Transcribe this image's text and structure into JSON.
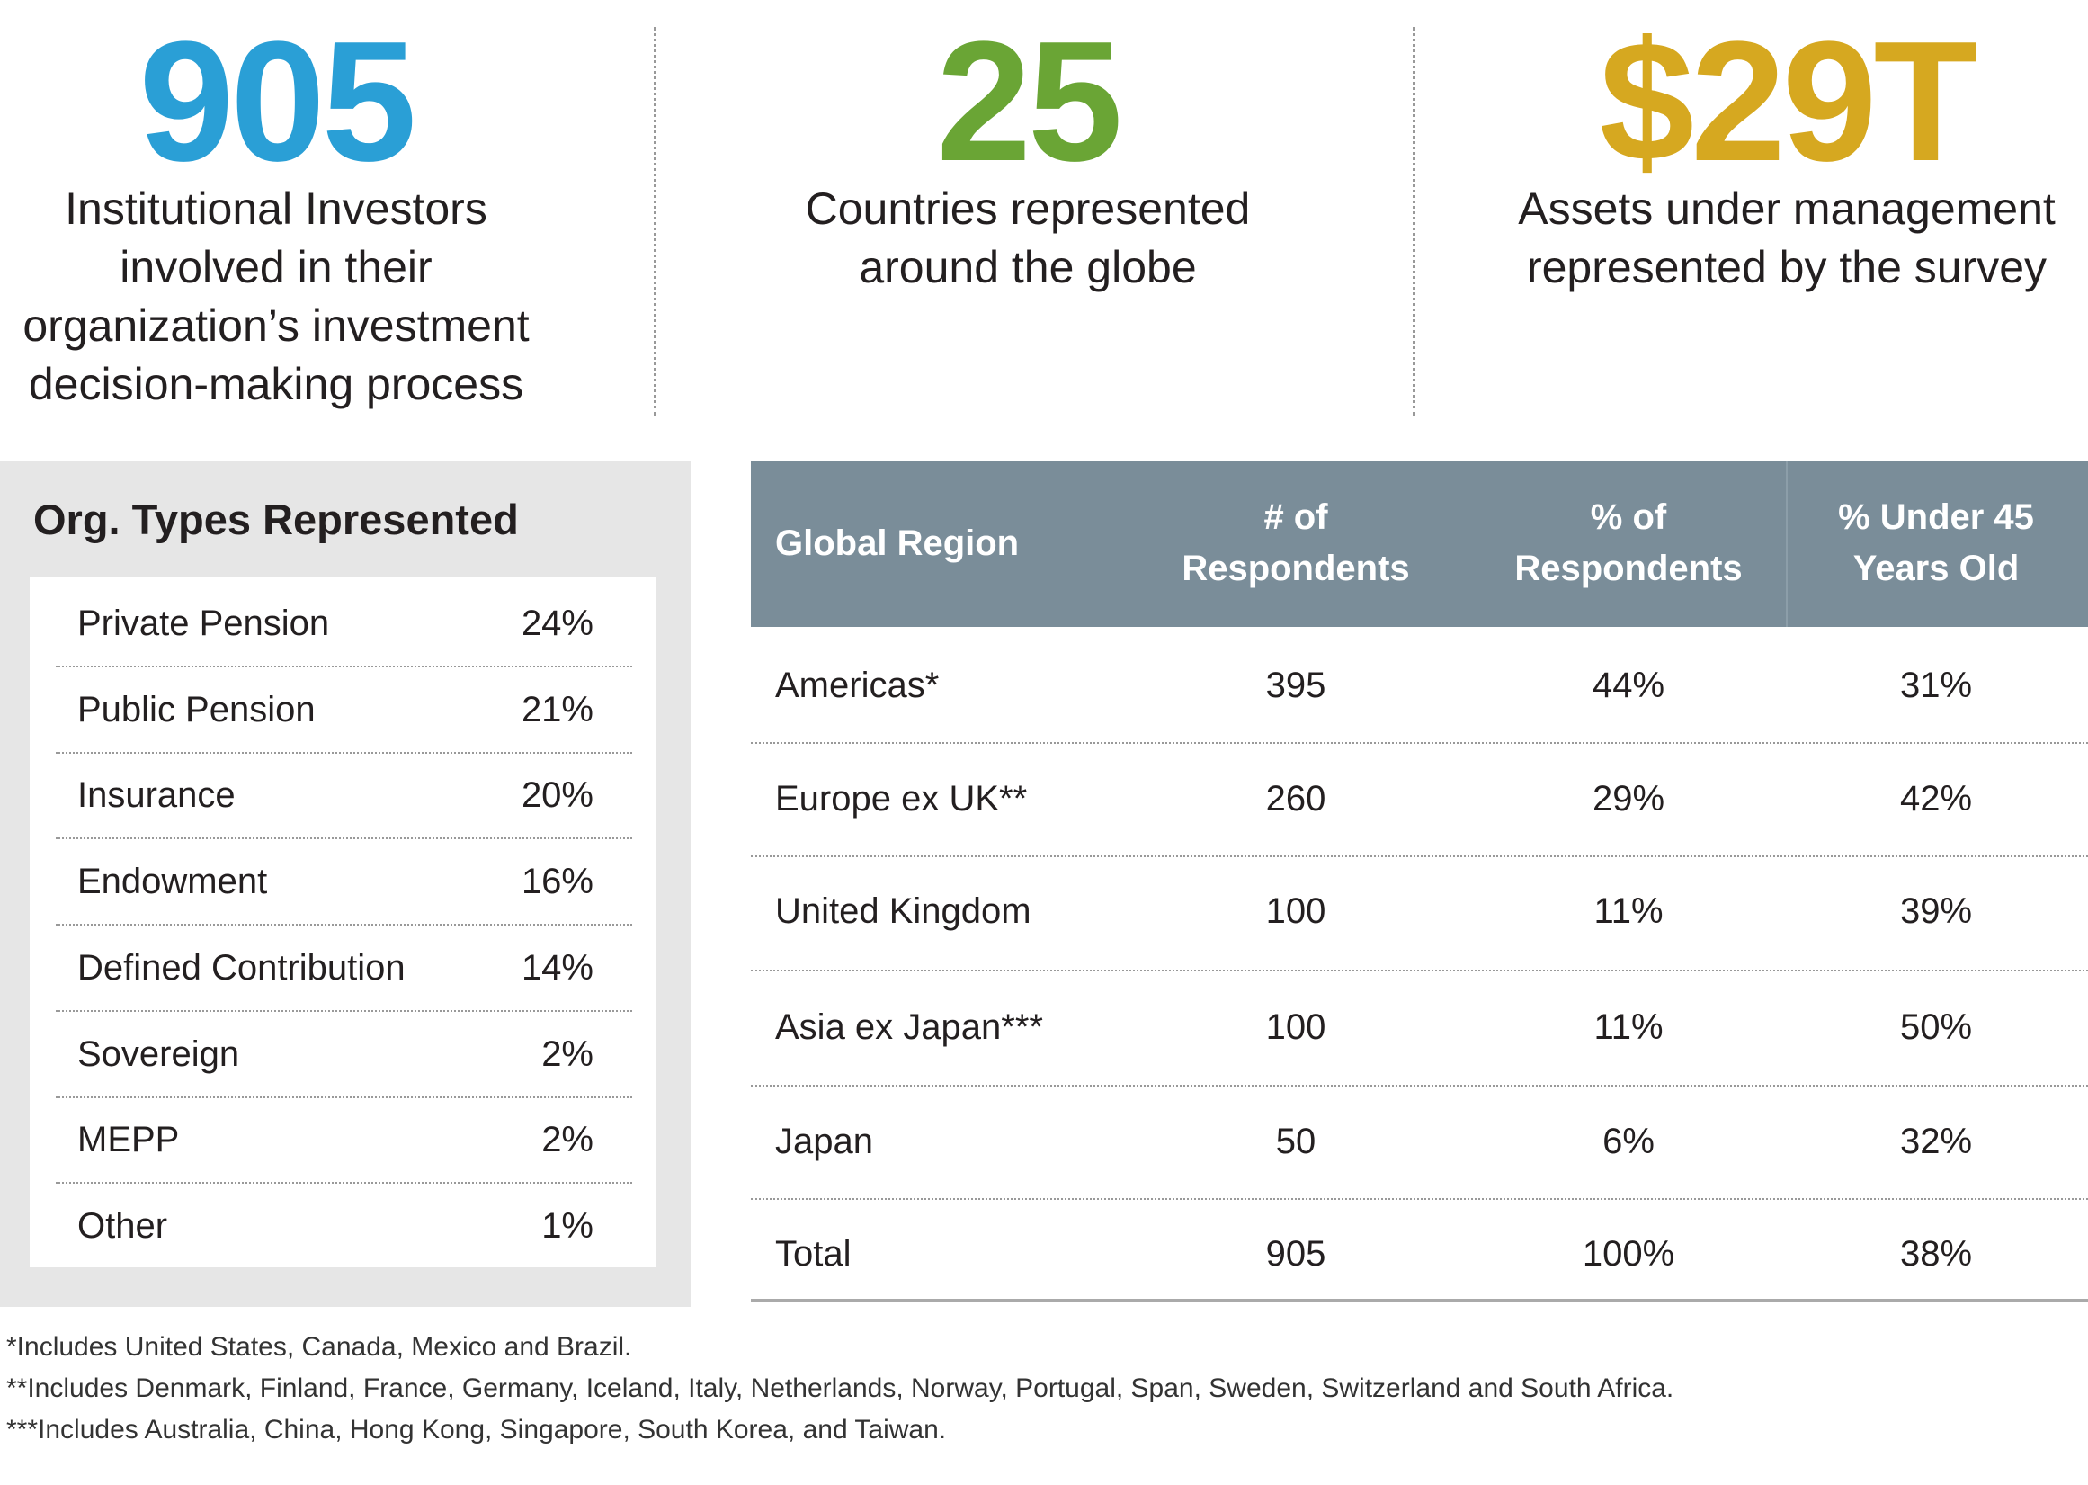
{
  "stats": [
    {
      "value": "905",
      "lines": [
        "Institutional Investors",
        "involved in their",
        "organization’s investment",
        "decision-making process"
      ]
    },
    {
      "value": "25",
      "lines": [
        "Countries represented",
        "around the globe"
      ]
    },
    {
      "value": "$29T",
      "lines": [
        "Assets under management",
        "represented by the survey"
      ]
    }
  ],
  "org_types": {
    "title": "Org. Types Represented",
    "rows": [
      [
        "Private Pension",
        "24%"
      ],
      [
        "Public Pension",
        "21%"
      ],
      [
        "Insurance",
        "20%"
      ],
      [
        "Endowment",
        "16%"
      ],
      [
        "Defined Contribution",
        "14%"
      ],
      [
        "Sovereign",
        "2%"
      ],
      [
        "MEPP",
        "2%"
      ],
      [
        "Other",
        "1%"
      ]
    ]
  },
  "table": {
    "headers": [
      [
        "Global Region"
      ],
      [
        "# of",
        "Respondents"
      ],
      [
        "% of",
        "Respondents"
      ],
      [
        "% Under 45",
        "Years Old"
      ]
    ],
    "rows": [
      [
        "Americas*",
        "395",
        "44%",
        "31%"
      ],
      [
        "Europe ex UK**",
        "260",
        "29%",
        "42%"
      ],
      [
        "United Kingdom",
        "100",
        "11%",
        "39%"
      ],
      [
        "Asia ex Japan***",
        "100",
        "11%",
        "50%"
      ],
      [
        "Japan",
        "50",
        "6%",
        "32%"
      ],
      [
        "Total",
        "905",
        "100%",
        "38%"
      ]
    ]
  },
  "footnotes": [
    "*Includes United States, Canada, Mexico and Brazil.",
    "**Includes Denmark, Finland, France, Germany, Iceland, Italy, Netherlands, Norway, Portugal, Span, Sweden, Switzerland and South Africa.",
    "***Includes Australia, China, Hong Kong, Singapore, South Korea, and Taiwan."
  ]
}
